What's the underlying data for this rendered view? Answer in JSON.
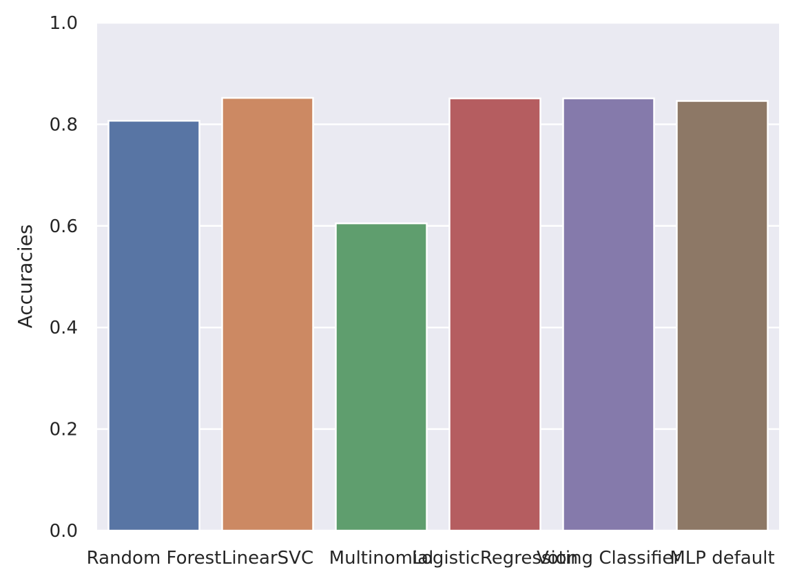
{
  "chart_data": {
    "type": "bar",
    "title": "",
    "xlabel": "",
    "ylabel": "Accuracies",
    "ylim": [
      0,
      1.0
    ],
    "yticks": [
      "0.0",
      "0.2",
      "0.4",
      "0.6",
      "0.8",
      "1.0"
    ],
    "grid": true,
    "legend": "none",
    "categories": [
      "Random Forest",
      "LinearSVC",
      "Multinomial",
      "LogisticRegression",
      "Voting Classifier",
      "MLP default"
    ],
    "values": [
      0.807,
      0.852,
      0.605,
      0.851,
      0.851,
      0.846
    ],
    "colors": [
      "#5875a4",
      "#cc8963",
      "#5f9e6e",
      "#b55d60",
      "#857aab",
      "#8d7866"
    ],
    "background": "#eaeaf2",
    "gridcolor": "#ffffff"
  }
}
